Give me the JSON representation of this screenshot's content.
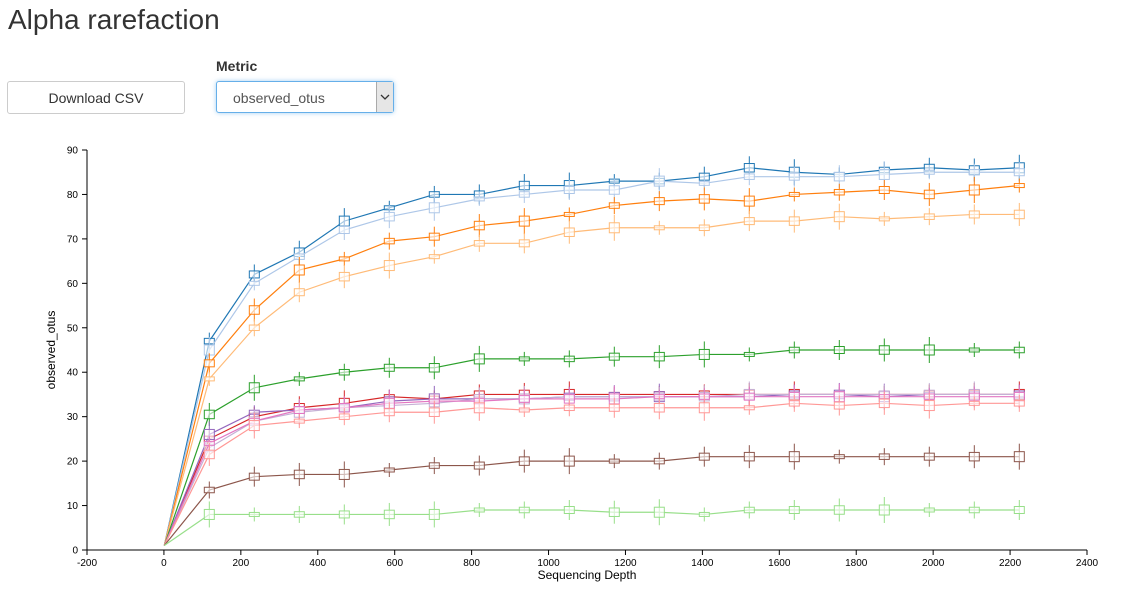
{
  "header": {
    "title": "Alpha rarefaction"
  },
  "controls": {
    "download_label": "Download CSV",
    "metric_label": "Metric",
    "metric_value": "observed_otus"
  },
  "icons": {
    "select_arrow": "chevron-down-icon"
  },
  "chart_data": {
    "type": "line",
    "title": "",
    "xlabel": "Sequencing Depth",
    "ylabel": "observed_otus",
    "xlim": [
      -200,
      2400
    ],
    "ylim": [
      0,
      90
    ],
    "xticks": [
      -200,
      0,
      200,
      400,
      600,
      800,
      1000,
      1200,
      1400,
      1600,
      1800,
      2000,
      2200,
      2400
    ],
    "yticks": [
      0,
      10,
      20,
      30,
      40,
      50,
      60,
      70,
      80,
      90
    ],
    "grid": false,
    "legend": "none",
    "markers": "box",
    "x": [
      1,
      118,
      235,
      352,
      469,
      586,
      703,
      820,
      937,
      1054,
      1171,
      1288,
      1405,
      1522,
      1639,
      1756,
      1873,
      1990,
      2107,
      2224
    ],
    "series": [
      {
        "color": "#1f77b4",
        "values": [
          1,
          47,
          62,
          67,
          74,
          77,
          80,
          80,
          82,
          82,
          83,
          83,
          84,
          86,
          85,
          84.5,
          85.5,
          86,
          85.5,
          86
        ]
      },
      {
        "color": "#aec7e8",
        "values": [
          1,
          45,
          60,
          66,
          72,
          75,
          77,
          79,
          80,
          81,
          81,
          83,
          82.5,
          84,
          84,
          84,
          84.5,
          85,
          85,
          85
        ]
      },
      {
        "color": "#ff7f0e",
        "values": [
          1,
          42,
          54,
          63,
          65.5,
          69.5,
          70.5,
          73,
          74,
          75.5,
          77.5,
          78.5,
          79,
          78.5,
          80,
          80.5,
          81,
          80,
          81,
          82
        ]
      },
      {
        "color": "#ffbb78",
        "values": [
          1,
          38.5,
          50,
          58,
          61.5,
          64,
          66,
          69,
          69,
          71.5,
          72.5,
          72.5,
          72.5,
          74,
          74,
          75,
          74.5,
          75,
          75.5,
          75.5
        ]
      },
      {
        "color": "#2ca02c",
        "values": [
          1,
          30.5,
          36.5,
          38.5,
          40,
          41,
          41,
          43,
          43,
          43,
          43.5,
          43.5,
          44,
          44,
          45,
          45,
          45,
          45,
          45,
          45
        ]
      },
      {
        "color": "#d62728",
        "values": [
          1,
          25,
          30,
          32,
          33,
          34.5,
          34,
          35,
          35,
          35,
          35,
          35,
          35,
          35,
          35,
          35,
          35,
          35,
          35,
          35
        ]
      },
      {
        "color": "#9467bd",
        "values": [
          1,
          26,
          31,
          31.5,
          32,
          33.5,
          34,
          34,
          34,
          34.5,
          34.5,
          34.5,
          34.5,
          34.5,
          35,
          35,
          34.5,
          35,
          35,
          35
        ]
      },
      {
        "color": "#c5b0d5",
        "values": [
          1,
          23,
          29,
          31,
          32,
          32.5,
          33,
          34,
          34,
          34.5,
          34.5,
          34.5,
          34.5,
          35,
          35,
          35,
          35,
          35,
          35,
          35
        ]
      },
      {
        "color": "#e377c2",
        "values": [
          1,
          24,
          29,
          31.5,
          32,
          33,
          33.5,
          33.5,
          34,
          34,
          34,
          34.5,
          34.5,
          34.5,
          34.5,
          34.5,
          34.5,
          34.5,
          34.5,
          34.5
        ]
      },
      {
        "color": "#ff9896",
        "values": [
          1,
          21.5,
          28,
          29,
          30,
          31,
          31,
          32,
          31.5,
          32,
          32,
          32,
          32,
          32,
          33,
          32.5,
          33,
          32.5,
          33,
          33
        ]
      },
      {
        "color": "#8c564b",
        "values": [
          1,
          13.5,
          16.5,
          17,
          17,
          18,
          19,
          19,
          20,
          20,
          20,
          20,
          21,
          21,
          21,
          21,
          21,
          21,
          21,
          21
        ]
      },
      {
        "color": "#98df8a",
        "values": [
          1,
          8,
          8,
          8,
          8,
          8,
          8,
          9,
          9,
          9,
          8.5,
          8.5,
          8,
          9,
          9,
          9,
          9,
          9,
          9,
          9
        ]
      }
    ]
  }
}
